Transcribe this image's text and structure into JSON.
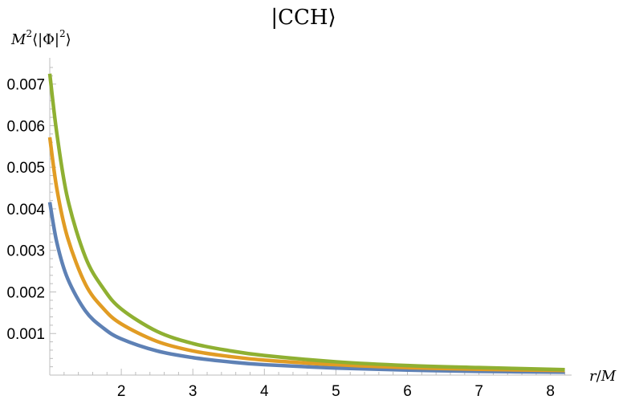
{
  "chart_data": {
    "type": "line",
    "title": "|CCH⟩",
    "xlabel": "r/M",
    "ylabel": "M²⟨|Φ|²⟩",
    "xlim": [
      1.0,
      8.25
    ],
    "ylim": [
      0.0,
      0.0074
    ],
    "x_ticks": [
      2,
      3,
      4,
      5,
      6,
      7,
      8
    ],
    "y_ticks": [
      0.001,
      0.002,
      0.003,
      0.004,
      0.005,
      0.006,
      0.007
    ],
    "grid": false,
    "series": [
      {
        "color": "#5e81b5",
        "x": [
          1.0,
          1.1,
          1.25,
          1.5,
          1.75,
          2.0,
          2.5,
          3.0,
          3.5,
          4.0,
          5.0,
          6.0,
          7.0,
          8.2
        ],
        "y": [
          0.00416,
          0.00318,
          0.00232,
          0.00154,
          0.00113,
          0.00087,
          0.00058,
          0.00042,
          0.00032,
          0.00025,
          0.00017,
          0.00012,
          9e-05,
          7e-05
        ]
      },
      {
        "color": "#e19c24",
        "x": [
          1.0,
          1.1,
          1.25,
          1.5,
          1.75,
          2.0,
          2.5,
          3.0,
          3.5,
          4.0,
          5.0,
          6.0,
          7.0,
          8.2
        ],
        "y": [
          0.00572,
          0.00447,
          0.0033,
          0.00218,
          0.0016,
          0.00123,
          0.00081,
          0.00058,
          0.00045,
          0.00036,
          0.00025,
          0.00018,
          0.00014,
          0.00011
        ]
      },
      {
        "color": "#8fb032",
        "x": [
          1.0,
          1.1,
          1.25,
          1.5,
          1.75,
          2.0,
          2.5,
          3.0,
          3.5,
          4.0,
          5.0,
          6.0,
          7.0,
          8.2
        ],
        "y": [
          0.00725,
          0.0058,
          0.00424,
          0.00283,
          0.00208,
          0.00159,
          0.00105,
          0.00076,
          0.00059,
          0.00047,
          0.00032,
          0.00023,
          0.00018,
          0.00013
        ]
      }
    ]
  }
}
